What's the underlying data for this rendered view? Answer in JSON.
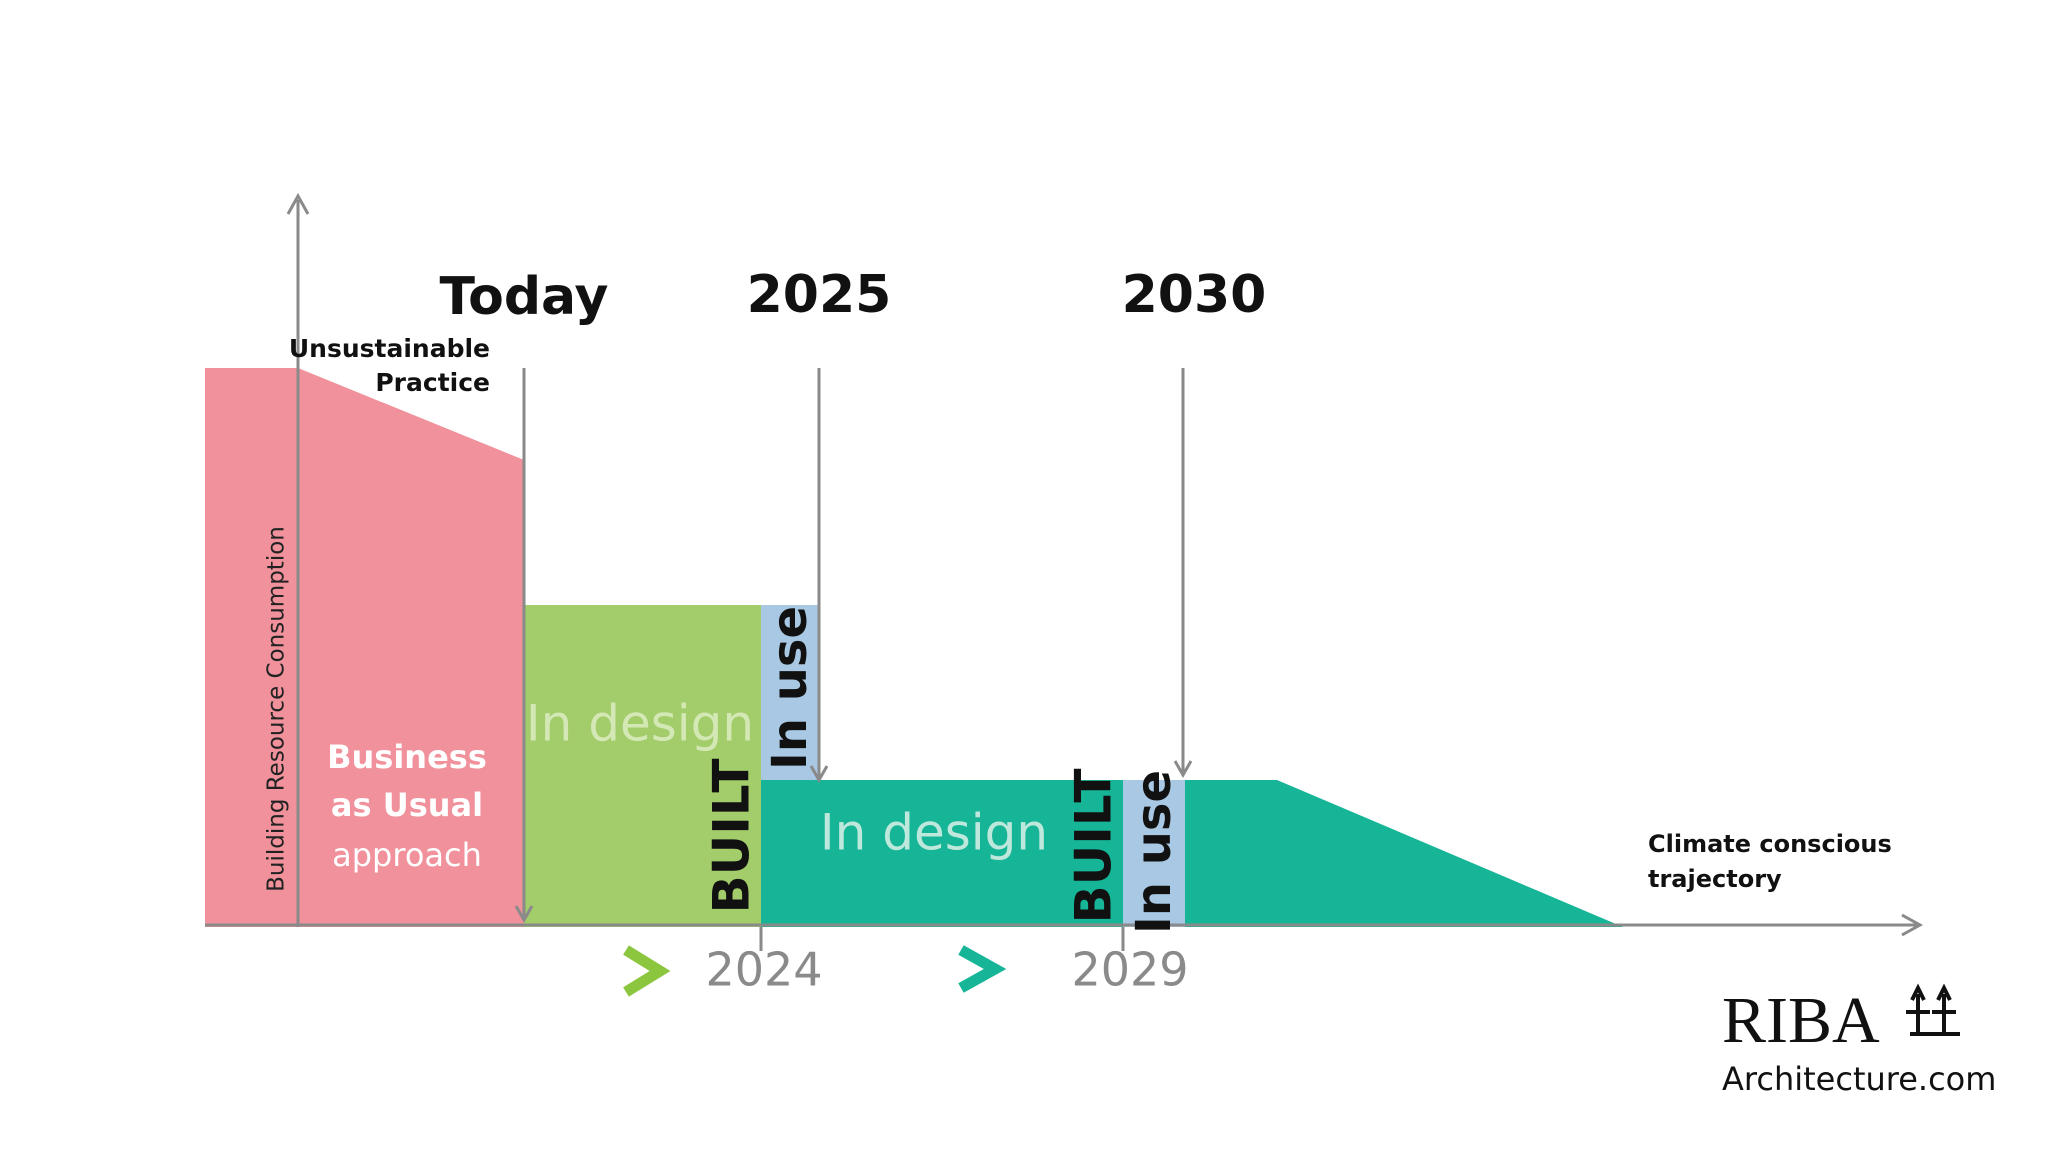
{
  "y_axis_label": "Building Resource Consumption",
  "markers": [
    "Today",
    "2025",
    "2030"
  ],
  "unsustainable": [
    "Unsustainable",
    "Practice"
  ],
  "business_as_usual": [
    "Business",
    "as Usual",
    "approach"
  ],
  "phase_1": {
    "design": "In design",
    "built": "BUILT",
    "use": "In use",
    "year": "2024"
  },
  "phase_2": {
    "design": "In design",
    "built": "BUILT",
    "use": "In use",
    "year": "2029"
  },
  "climate": [
    "Climate conscious",
    "trajectory"
  ],
  "logo": {
    "name": "RIBA",
    "site": "Architecture.com"
  }
}
